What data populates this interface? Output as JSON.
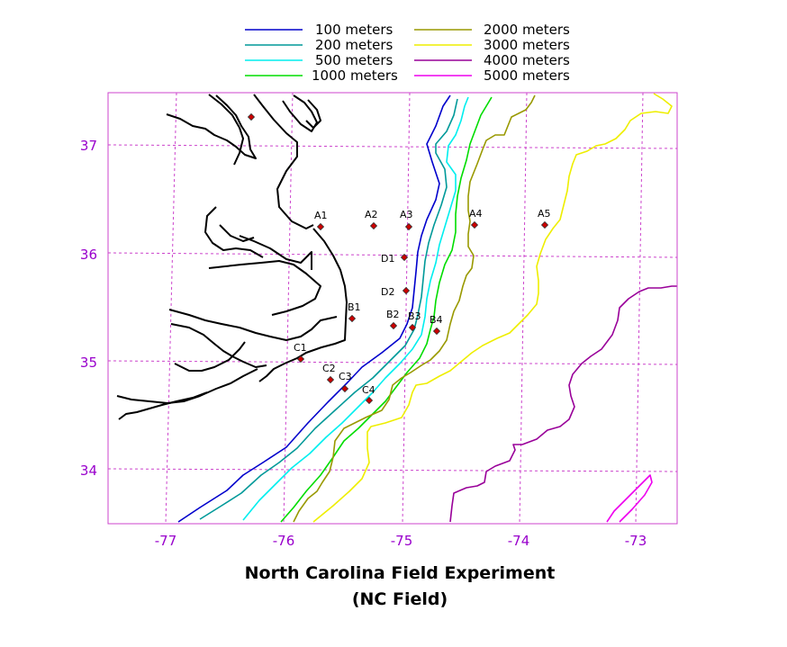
{
  "map": {
    "title": "North Carolina Field Experiment",
    "subtitle": "(NC Field)",
    "lon_ticks": [
      "-77",
      "-76",
      "-75",
      "-74",
      "-73"
    ],
    "lat_ticks": [
      "37",
      "36",
      "35",
      "34"
    ],
    "colors": {
      "grid": "#cc44cc",
      "frame": "#cc44cc",
      "tick_text": "#9900cc",
      "coast": "#000000",
      "station_fill": "#cc0000",
      "station_stroke": "#333333"
    }
  },
  "legend": [
    {
      "label": "100 meters",
      "color": "#0000cc"
    },
    {
      "label": "200 meters",
      "color": "#009999"
    },
    {
      "label": "500 meters",
      "color": "#00eeee"
    },
    {
      "label": "1000 meters",
      "color": "#00dd00"
    },
    {
      "label": "2000 meters",
      "color": "#999900"
    },
    {
      "label": "3000 meters",
      "color": "#eeee00"
    },
    {
      "label": "4000 meters",
      "color": "#990099"
    },
    {
      "label": "5000 meters",
      "color": "#ee00ee"
    }
  ],
  "stations": [
    {
      "id": "A1"
    },
    {
      "id": "A2"
    },
    {
      "id": "A3"
    },
    {
      "id": "A4"
    },
    {
      "id": "A5"
    },
    {
      "id": "D1"
    },
    {
      "id": "D2"
    },
    {
      "id": "B1"
    },
    {
      "id": "B2"
    },
    {
      "id": "B3"
    },
    {
      "id": "B4"
    },
    {
      "id": "C1"
    },
    {
      "id": "C2"
    },
    {
      "id": "C3"
    },
    {
      "id": "C4"
    }
  ]
}
